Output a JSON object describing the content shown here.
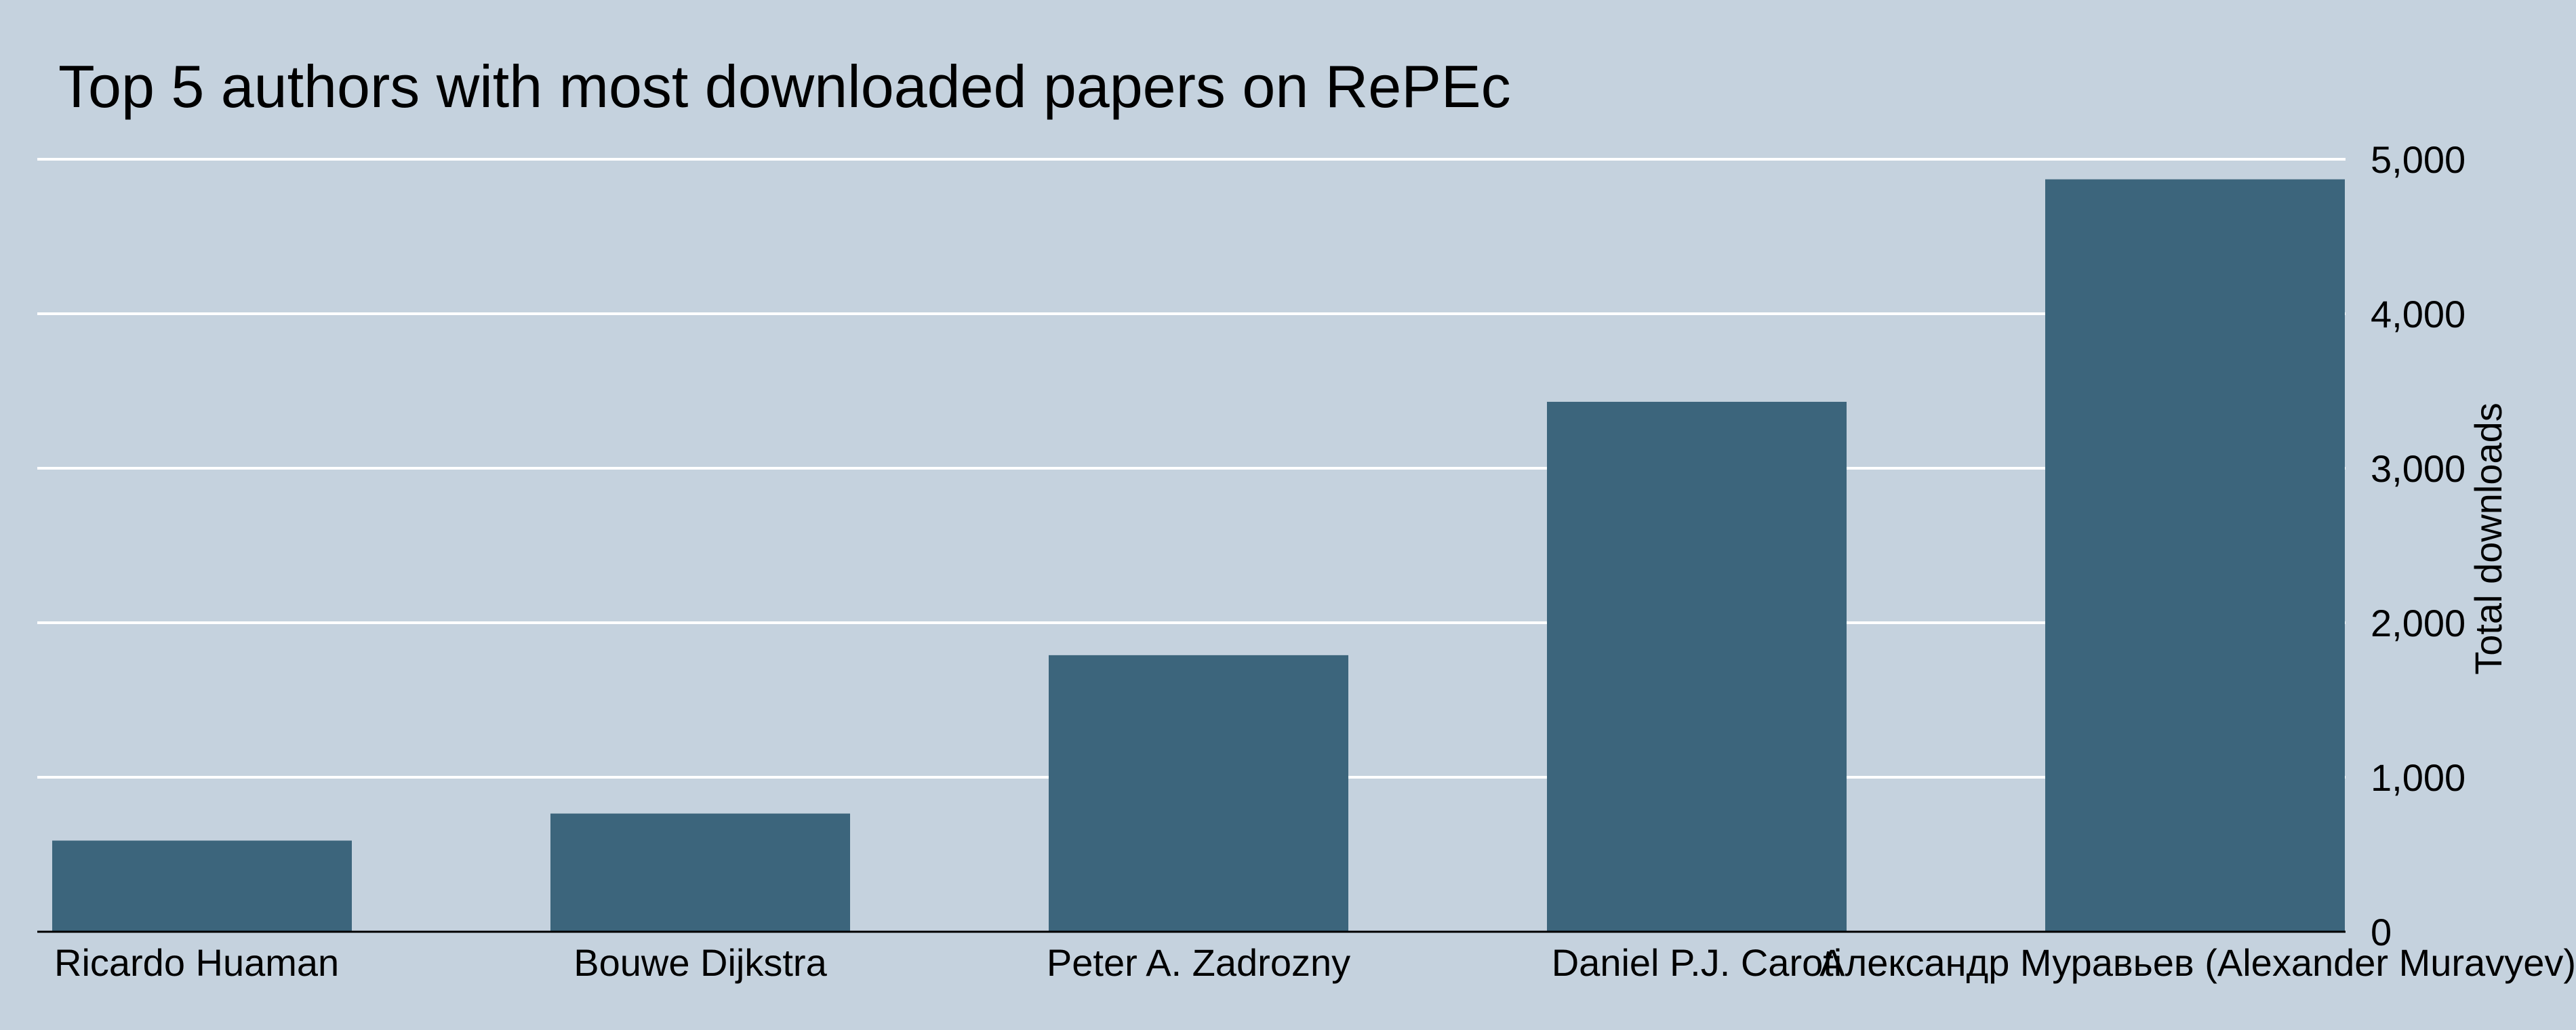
{
  "colors": {
    "background": "#c5d2de",
    "bar": "#3c657c",
    "grid": "#ffffff",
    "axis": "#000000"
  },
  "chart_data": {
    "type": "bar",
    "title": "Top 5 authors with most downloaded papers on RePEc",
    "xlabel": "",
    "ylabel": "Total downloads",
    "y_axis_position": "right",
    "ylim": [
      0,
      5000
    ],
    "yticks": [
      0,
      1000,
      2000,
      3000,
      4000,
      5000
    ],
    "ytick_labels": [
      "0",
      "1,000",
      "2,000",
      "3,000",
      "4,000",
      "5,000"
    ],
    "grid": true,
    "legend": "none",
    "categories": [
      "Ricardo Huaman",
      "Bouwe Dijkstra",
      "Peter A. Zadrozny",
      "Daniel P.J. Caroti",
      "Александр Муравьев (Alexander Muravyev)"
    ],
    "values": [
      590,
      765,
      1790,
      3430,
      4870
    ]
  }
}
